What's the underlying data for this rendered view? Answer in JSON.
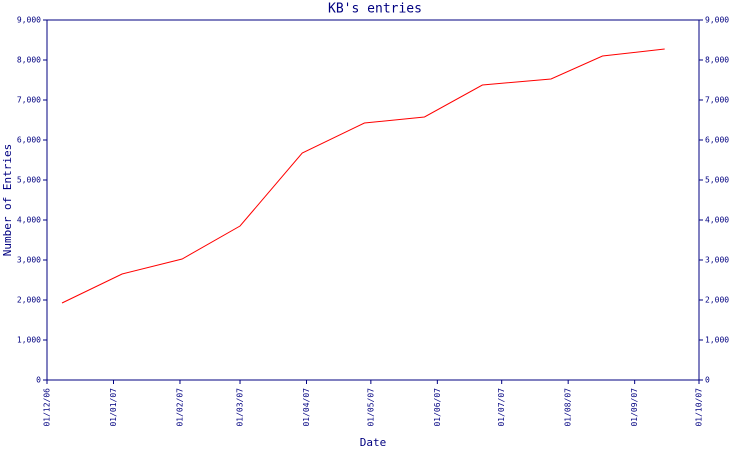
{
  "chart_data": {
    "type": "line",
    "title": "KB's entries",
    "x_label": "Date",
    "y_label": "Number of Entries",
    "x": [
      "2006-12-08",
      "2007-01-05",
      "2007-02-02",
      "2007-03-01",
      "2007-03-30",
      "2007-04-28",
      "2007-05-26",
      "2007-06-22",
      "2007-07-24",
      "2007-08-17",
      "2007-09-15"
    ],
    "series": [
      {
        "name": "KB",
        "color": "#ff0000",
        "values": [
          1925,
          2650,
          3025,
          3850,
          5675,
          6425,
          6575,
          7375,
          7525,
          8100,
          8275
        ]
      }
    ],
    "xlim": [
      "2006-12-01",
      "2007-10-01"
    ],
    "xticks": [
      {
        "value": "2006-12-01",
        "label": "01/12/06"
      },
      {
        "value": "2007-01-01",
        "label": "01/01/07"
      },
      {
        "value": "2007-02-01",
        "label": "01/02/07"
      },
      {
        "value": "2007-03-01",
        "label": "01/03/07"
      },
      {
        "value": "2007-04-01",
        "label": "01/04/07"
      },
      {
        "value": "2007-05-01",
        "label": "01/05/07"
      },
      {
        "value": "2007-06-01",
        "label": "01/06/07"
      },
      {
        "value": "2007-07-01",
        "label": "01/07/07"
      },
      {
        "value": "2007-08-01",
        "label": "01/08/07"
      },
      {
        "value": "2007-09-01",
        "label": "01/09/07"
      },
      {
        "value": "2007-10-01",
        "label": "01/10/07"
      }
    ],
    "ylim": [
      0,
      9000
    ],
    "yticks": [
      0,
      {
        "value": 1000,
        "label": "1,000"
      },
      {
        "value": 2000,
        "label": "2,000"
      },
      {
        "value": 3000,
        "label": "3,000"
      },
      {
        "value": 4000,
        "label": "4,000"
      },
      {
        "value": 5000,
        "label": "5,000"
      },
      {
        "value": 6000,
        "label": "6,000"
      },
      {
        "value": 7000,
        "label": "7,000"
      },
      {
        "value": 8000,
        "label": "8,000"
      },
      {
        "value": 9000,
        "label": "9,000"
      }
    ],
    "axis_color": "#000080"
  }
}
